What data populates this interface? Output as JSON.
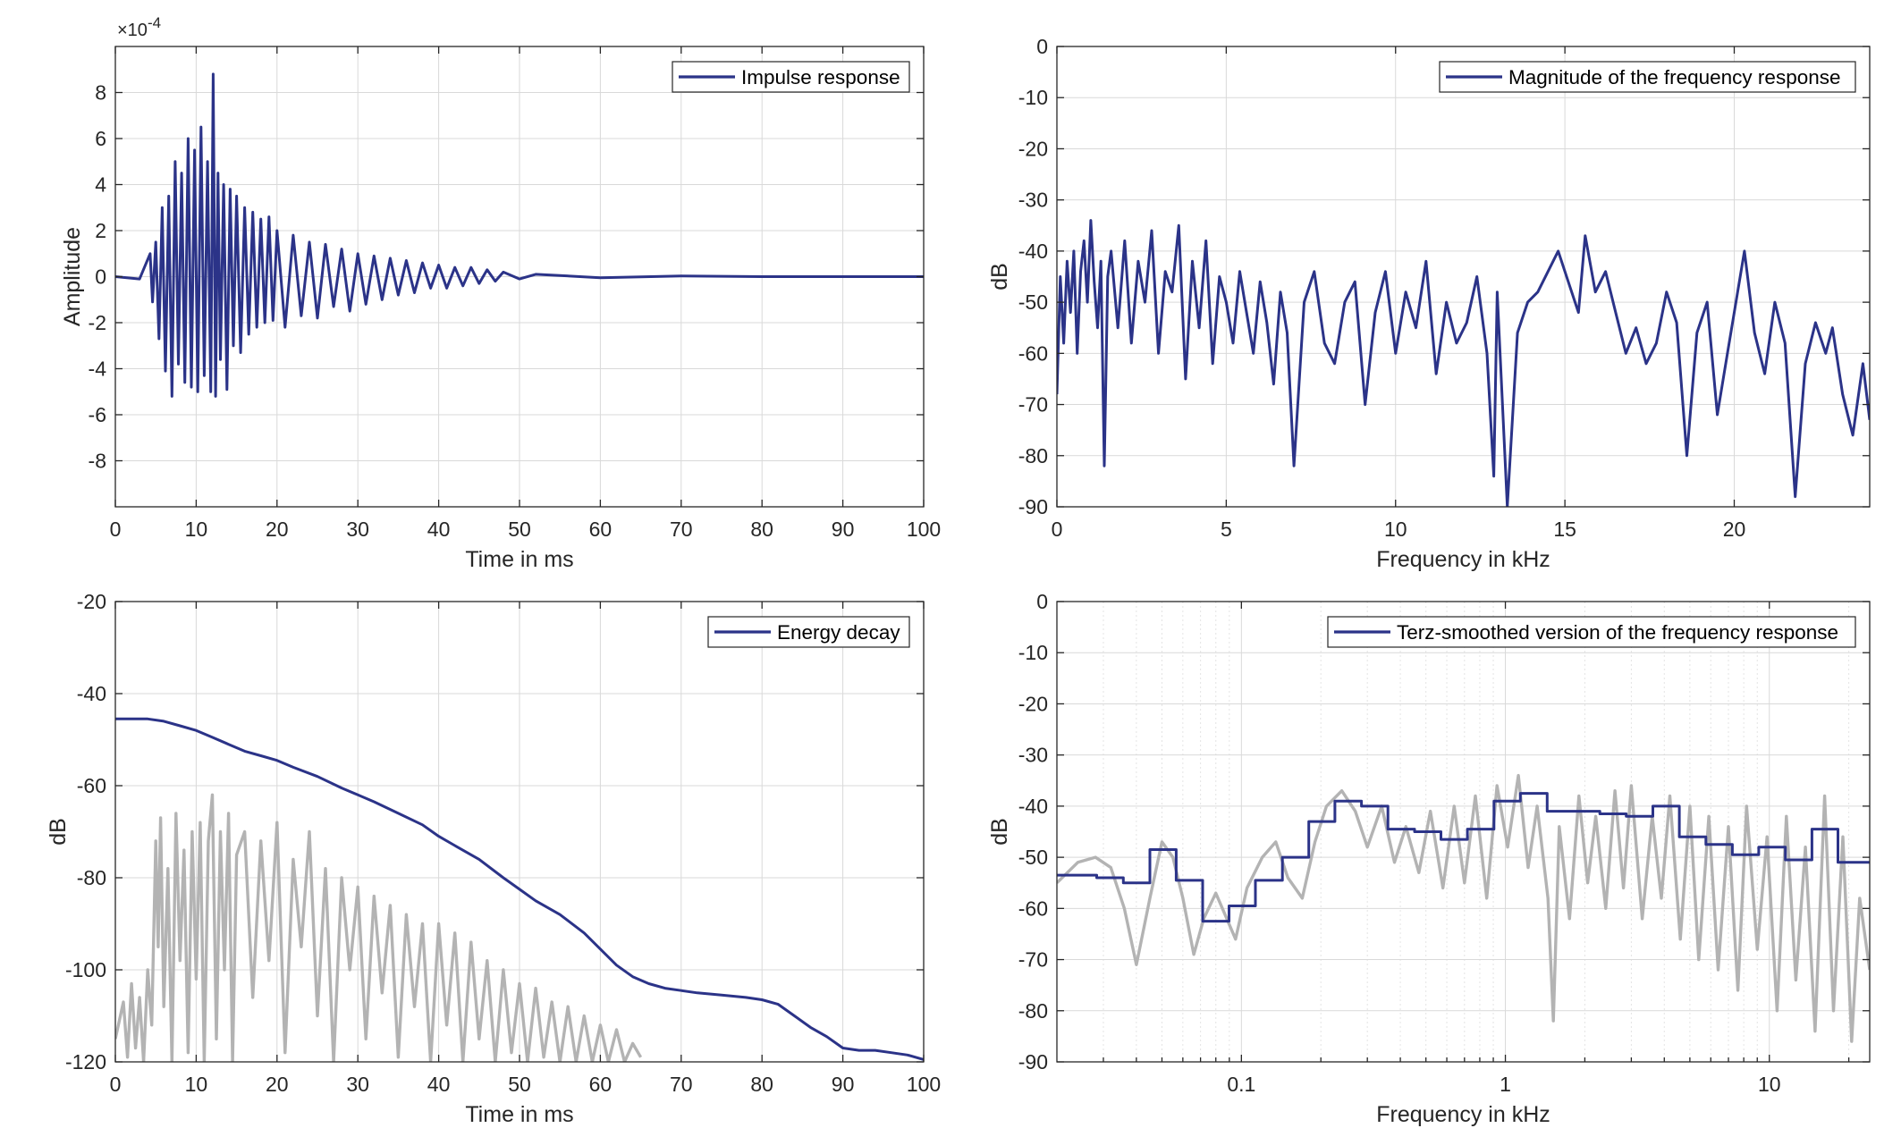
{
  "colors": {
    "primary": "#2b3388",
    "secondary": "#b3b3b3",
    "grid": "#d9d9d9",
    "axis": "#262626"
  },
  "chart_data": [
    {
      "id": "impulse",
      "type": "line",
      "xlabel": "Time in ms",
      "ylabel": "Amplitude",
      "xlim": [
        0,
        100
      ],
      "ylim": [
        -10,
        10
      ],
      "y_scale_label": "×10",
      "y_scale_exponent": "-4",
      "xticks": [
        0,
        10,
        20,
        30,
        40,
        50,
        60,
        70,
        80,
        90,
        100
      ],
      "xtick_labels": [
        "0",
        "10",
        "20",
        "30",
        "40",
        "50",
        "60",
        "70",
        "80",
        "90",
        "100"
      ],
      "yticks": [
        -8,
        -6,
        -4,
        -2,
        0,
        2,
        4,
        6,
        8
      ],
      "ytick_labels": [
        "-8",
        "-6",
        "-4",
        "-2",
        "0",
        "2",
        "4",
        "6",
        "8"
      ],
      "grid": true,
      "legend_position": "top-right",
      "series": [
        {
          "name": "Impulse response",
          "color": "#2b3388",
          "x": [
            0,
            3,
            4.3,
            4.6,
            5.0,
            5.4,
            5.8,
            6.2,
            6.6,
            7.0,
            7.4,
            7.8,
            8.2,
            8.6,
            9.0,
            9.4,
            9.8,
            10.2,
            10.6,
            11.0,
            11.4,
            11.8,
            12.1,
            12.4,
            12.7,
            13.0,
            13.4,
            13.8,
            14.2,
            14.6,
            15.0,
            15.5,
            16.0,
            16.5,
            17.0,
            17.5,
            18.0,
            18.5,
            19.0,
            19.5,
            20.0,
            21,
            22,
            23,
            24,
            25,
            26,
            27,
            28,
            29,
            30,
            31,
            32,
            33,
            34,
            35,
            36,
            37,
            38,
            39,
            40,
            41,
            42,
            43,
            44,
            45,
            46,
            47,
            48,
            50,
            52,
            55,
            60,
            70,
            80,
            90,
            100
          ],
          "y": [
            0,
            -0.1,
            1.0,
            -1.1,
            1.5,
            -2.7,
            3.0,
            -4.1,
            3.5,
            -5.2,
            5.0,
            -3.8,
            4.5,
            -4.6,
            6.0,
            -4.8,
            5.5,
            -5.0,
            6.5,
            -4.3,
            5.0,
            -5.0,
            8.8,
            -5.2,
            4.5,
            -3.6,
            4.0,
            -4.9,
            3.8,
            -3.0,
            3.5,
            -3.3,
            3.0,
            -2.5,
            2.8,
            -2.2,
            2.5,
            -2.0,
            2.6,
            -1.9,
            2.0,
            -2.2,
            1.8,
            -1.7,
            1.5,
            -1.8,
            1.4,
            -1.3,
            1.2,
            -1.5,
            1.0,
            -1.2,
            0.9,
            -1.0,
            0.8,
            -0.8,
            0.7,
            -0.7,
            0.6,
            -0.5,
            0.5,
            -0.5,
            0.4,
            -0.4,
            0.4,
            -0.3,
            0.3,
            -0.2,
            0.2,
            -0.1,
            0.1,
            0.05,
            -0.05,
            0.03,
            0,
            0,
            0
          ]
        }
      ]
    },
    {
      "id": "magnitude",
      "type": "line",
      "xlabel": "Frequency in kHz",
      "ylabel": "dB",
      "xlim": [
        0,
        24
      ],
      "ylim": [
        -90,
        0
      ],
      "xticks": [
        0,
        5,
        10,
        15,
        20
      ],
      "xtick_labels": [
        "0",
        "5",
        "10",
        "15",
        "20"
      ],
      "yticks": [
        0,
        -10,
        -20,
        -30,
        -40,
        -50,
        -60,
        -70,
        -80,
        -90
      ],
      "ytick_labels": [
        "0",
        "-10",
        "-20",
        "-30",
        "-40",
        "-50",
        "-60",
        "-70",
        "-80",
        "-90"
      ],
      "grid": true,
      "legend_position": "top-right",
      "series": [
        {
          "name": "Magnitude of the frequency response",
          "color": "#2b3388",
          "x": [
            0,
            0.1,
            0.2,
            0.3,
            0.4,
            0.5,
            0.6,
            0.7,
            0.8,
            0.9,
            1.0,
            1.1,
            1.2,
            1.3,
            1.4,
            1.5,
            1.6,
            1.8,
            2.0,
            2.2,
            2.4,
            2.6,
            2.8,
            3.0,
            3.2,
            3.4,
            3.6,
            3.8,
            4.0,
            4.2,
            4.4,
            4.6,
            4.8,
            5.0,
            5.2,
            5.4,
            5.6,
            5.8,
            6.0,
            6.2,
            6.4,
            6.6,
            6.8,
            7.0,
            7.3,
            7.6,
            7.9,
            8.2,
            8.5,
            8.8,
            9.1,
            9.4,
            9.7,
            10.0,
            10.3,
            10.6,
            10.9,
            11.2,
            11.5,
            11.8,
            12.1,
            12.4,
            12.7,
            12.9,
            13.0,
            13.3,
            13.6,
            13.9,
            14.2,
            14.5,
            14.8,
            15.1,
            15.4,
            15.6,
            15.9,
            16.2,
            16.5,
            16.8,
            17.1,
            17.4,
            17.7,
            18.0,
            18.3,
            18.6,
            18.9,
            19.2,
            19.5,
            19.8,
            20.0,
            20.3,
            20.6,
            20.9,
            21.2,
            21.5,
            21.8,
            22.1,
            22.4,
            22.7,
            22.9,
            23.2,
            23.5,
            23.8,
            24.0
          ],
          "y": [
            -68,
            -45,
            -58,
            -42,
            -52,
            -40,
            -60,
            -44,
            -38,
            -50,
            -34,
            -46,
            -55,
            -42,
            -82,
            -45,
            -40,
            -55,
            -38,
            -58,
            -42,
            -50,
            -36,
            -60,
            -44,
            -48,
            -35,
            -65,
            -42,
            -55,
            -38,
            -62,
            -45,
            -50,
            -58,
            -44,
            -52,
            -60,
            -46,
            -54,
            -66,
            -48,
            -56,
            -82,
            -50,
            -44,
            -58,
            -62,
            -50,
            -46,
            -70,
            -52,
            -44,
            -60,
            -48,
            -55,
            -42,
            -64,
            -50,
            -58,
            -54,
            -45,
            -60,
            -84,
            -48,
            -90,
            -56,
            -50,
            -48,
            -44,
            -40,
            -46,
            -52,
            -37,
            -48,
            -44,
            -52,
            -60,
            -55,
            -62,
            -58,
            -48,
            -54,
            -80,
            -56,
            -50,
            -72,
            -60,
            -52,
            -40,
            -56,
            -64,
            -50,
            -58,
            -88,
            -62,
            -54,
            -60,
            -55,
            -68,
            -76,
            -62,
            -73
          ]
        }
      ]
    },
    {
      "id": "energy",
      "type": "line",
      "xlabel": "Time in ms",
      "ylabel": "dB",
      "xlim": [
        0,
        100
      ],
      "ylim": [
        -120,
        -20
      ],
      "xticks": [
        0,
        10,
        20,
        30,
        40,
        50,
        60,
        70,
        80,
        90,
        100
      ],
      "xtick_labels": [
        "0",
        "10",
        "20",
        "30",
        "40",
        "50",
        "60",
        "70",
        "80",
        "90",
        "100"
      ],
      "yticks": [
        -120,
        -100,
        -80,
        -60,
        -40,
        -20
      ],
      "ytick_labels": [
        "-120",
        "-100",
        "-80",
        "-60",
        "-40",
        "-20"
      ],
      "grid": true,
      "legend_position": "top-right",
      "series": [
        {
          "name": "Energy decay",
          "color": "#2b3388",
          "x": [
            0,
            2,
            4,
            6,
            8,
            10,
            12,
            14,
            16,
            18,
            20,
            22,
            25,
            28,
            30,
            32,
            35,
            38,
            40,
            42,
            45,
            48,
            50,
            52,
            55,
            58,
            60,
            62,
            64,
            66,
            68,
            70,
            72,
            75,
            78,
            80,
            82,
            84,
            86,
            88,
            90,
            92,
            94,
            96,
            98,
            100
          ],
          "y": [
            -45.5,
            -45.5,
            -45.5,
            -46,
            -47,
            -48,
            -49.5,
            -51,
            -52.5,
            -53.5,
            -54.5,
            -56,
            -58,
            -60.5,
            -62,
            -63.5,
            -66,
            -68.5,
            -71,
            -73,
            -76,
            -80,
            -82.5,
            -85,
            -88,
            -92,
            -95.5,
            -99,
            -101.5,
            -103,
            -104,
            -104.5,
            -105,
            -105.5,
            -106,
            -106.5,
            -107.5,
            -110,
            -112.5,
            -114.5,
            -117,
            -117.5,
            -117.5,
            -118,
            -118.5,
            -119.5
          ]
        },
        {
          "name": "",
          "color": "#b3b3b3",
          "x": [
            0,
            1,
            1.5,
            2,
            2.5,
            3,
            3.5,
            4,
            4.5,
            5,
            5.3,
            5.6,
            6,
            6.5,
            7,
            7.5,
            8,
            8.5,
            9,
            9.5,
            10,
            10.5,
            11,
            11.5,
            12,
            12.5,
            13,
            13.5,
            14,
            14.5,
            15,
            16,
            17,
            18,
            19,
            20,
            21,
            22,
            23,
            24,
            25,
            26,
            27,
            28,
            29,
            30,
            31,
            32,
            33,
            34,
            35,
            36,
            37,
            38,
            39,
            40,
            41,
            42,
            43,
            44,
            45,
            46,
            47,
            48,
            49,
            50,
            51,
            52,
            53,
            54,
            55,
            56,
            57,
            58,
            59,
            60,
            61,
            62,
            63,
            64,
            65
          ],
          "y": [
            -115,
            -107,
            -119,
            -103,
            -117,
            -106,
            -120,
            -100,
            -112,
            -72,
            -95,
            -67,
            -108,
            -78,
            -120,
            -66,
            -98,
            -74,
            -118,
            -70,
            -102,
            -68,
            -120,
            -72,
            -62,
            -115,
            -70,
            -100,
            -66,
            -120,
            -75,
            -70,
            -106,
            -72,
            -98,
            -68,
            -118,
            -76,
            -95,
            -70,
            -110,
            -78,
            -120,
            -80,
            -100,
            -82,
            -115,
            -84,
            -105,
            -86,
            -119,
            -88,
            -108,
            -90,
            -120,
            -90,
            -112,
            -92,
            -120,
            -94,
            -115,
            -98,
            -120,
            -100,
            -118,
            -103,
            -120,
            -104,
            -119,
            -107,
            -120,
            -108,
            -120,
            -110,
            -120,
            -112,
            -120,
            -113,
            -120,
            -116,
            -119
          ]
        }
      ]
    },
    {
      "id": "terz",
      "type": "line",
      "xlabel": "Frequency in kHz",
      "ylabel": "dB",
      "x_scale": "log",
      "xlim": [
        0.02,
        24
      ],
      "ylim": [
        -90,
        0
      ],
      "xticks": [
        0.1,
        1,
        10
      ],
      "xtick_labels": [
        "0.1",
        "1",
        "10"
      ],
      "yticks": [
        0,
        -10,
        -20,
        -30,
        -40,
        -50,
        -60,
        -70,
        -80,
        -90
      ],
      "ytick_labels": [
        "0",
        "-10",
        "-20",
        "-30",
        "-40",
        "-50",
        "-60",
        "-70",
        "-80",
        "-90"
      ],
      "grid": true,
      "legend_position": "top-right",
      "series": [
        {
          "name": "Terz-smoothed version of the frequency response",
          "color": "#2b3388",
          "step": true,
          "x": [
            0.02,
            0.0283,
            0.0357,
            0.045,
            0.0566,
            0.0713,
            0.0898,
            0.113,
            0.143,
            0.18,
            0.226,
            0.285,
            0.359,
            0.453,
            0.57,
            0.718,
            0.905,
            1.14,
            1.44,
            1.81,
            2.28,
            2.87,
            3.62,
            4.56,
            5.75,
            7.24,
            9.12,
            11.5,
            14.5,
            18.2,
            24
          ],
          "y": [
            -53.5,
            -54,
            -55,
            -48.5,
            -54.5,
            -62.5,
            -59.5,
            -54.5,
            -50,
            -43,
            -39,
            -40,
            -44.5,
            -45,
            -46.5,
            -44.5,
            -39,
            -37.5,
            -41,
            -41,
            -41.5,
            -42,
            -40,
            -46,
            -47.5,
            -49.5,
            -48,
            -50.5,
            -44.5,
            -51,
            -51
          ]
        },
        {
          "name": "",
          "color": "#b3b3b3",
          "x": [
            0.02,
            0.024,
            0.028,
            0.032,
            0.036,
            0.04,
            0.045,
            0.05,
            0.055,
            0.06,
            0.066,
            0.072,
            0.08,
            0.088,
            0.095,
            0.105,
            0.12,
            0.135,
            0.15,
            0.17,
            0.19,
            0.21,
            0.24,
            0.27,
            0.3,
            0.34,
            0.38,
            0.42,
            0.47,
            0.52,
            0.58,
            0.64,
            0.7,
            0.77,
            0.85,
            0.93,
            1.02,
            1.12,
            1.22,
            1.32,
            1.45,
            1.52,
            1.6,
            1.75,
            1.9,
            2.05,
            2.2,
            2.4,
            2.6,
            2.8,
            3.0,
            3.3,
            3.6,
            3.9,
            4.2,
            4.6,
            5.0,
            5.4,
            5.9,
            6.4,
            7.0,
            7.6,
            8.2,
            9.0,
            9.8,
            10.7,
            11.6,
            12.6,
            13.7,
            14.9,
            16.2,
            17.5,
            19,
            20.5,
            22,
            24
          ],
          "y": [
            -55,
            -51,
            -50,
            -52,
            -60,
            -71,
            -58,
            -47,
            -50,
            -58,
            -69,
            -62,
            -57,
            -62,
            -66,
            -56,
            -50,
            -47,
            -54,
            -58,
            -47,
            -40,
            -37,
            -41,
            -48,
            -40,
            -51,
            -44,
            -53,
            -41,
            -56,
            -40,
            -55,
            -38,
            -58,
            -36,
            -48,
            -34,
            -52,
            -40,
            -58,
            -82,
            -44,
            -62,
            -38,
            -55,
            -42,
            -60,
            -37,
            -56,
            -36,
            -62,
            -42,
            -58,
            -38,
            -66,
            -40,
            -70,
            -42,
            -72,
            -44,
            -76,
            -40,
            -68,
            -46,
            -80,
            -42,
            -74,
            -48,
            -84,
            -38,
            -80,
            -46,
            -86,
            -58,
            -72
          ]
        }
      ]
    }
  ]
}
